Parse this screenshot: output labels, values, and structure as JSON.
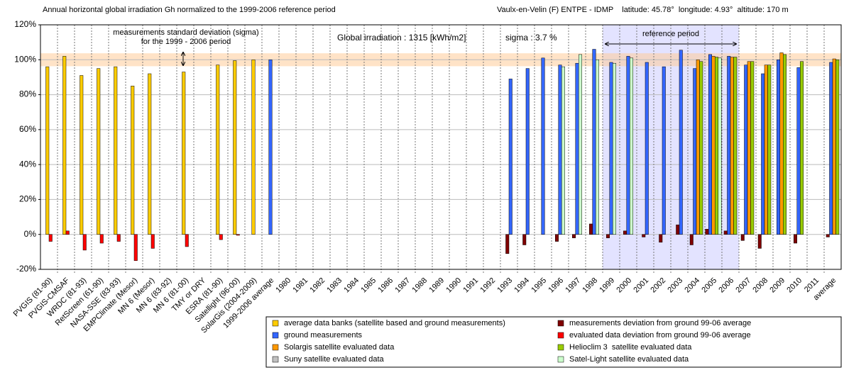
{
  "chart_data": {
    "type": "bar",
    "title": "Annual horizontal global irradiation Gh normalized to the 1999-2006 reference period",
    "subtitle": "Vaulx-en-Velin (F) ENTPE - IDMP    latitude: 45.78°  longitude: 4.93°  altitude: 170 m",
    "annotations": [
      "measurements standard deviation (sigma)",
      "for the 1999 - 2006 period",
      "Global irradiation : 1315 [kWh/m2]",
      "sigma : 3.7 %",
      "reference period"
    ],
    "sigma_band": [
      96.3,
      103.7
    ],
    "reference_band": {
      "from": "1999",
      "to": "2006"
    },
    "categories": [
      "PVGIS (81-90)",
      "PVGIS-CMSAF",
      "WRDC (81-93)",
      "RetScreen (61-90)",
      "NASA-SSE (83-93)",
      "EMPClimate (Mesor)",
      "MN 6 (Mesor)",
      "MN 6 (83-92)",
      "MN 6 (81-00)",
      "TMY or DRY",
      "ESRA (81-90)",
      "Satellight (96-00)",
      "SolarGis (2004-2009)",
      "1999-2006 average",
      "1980",
      "1981",
      "1982",
      "1983",
      "1984",
      "1985",
      "1986",
      "1987",
      "1988",
      "1989",
      "1990",
      "1991",
      "1992",
      "1993",
      "1994",
      "1995",
      "1996",
      "1997",
      "1998",
      "1999",
      "2000",
      "2001",
      "2002",
      "2003",
      "2004",
      "2005",
      "2006",
      "2007",
      "2008",
      "2009",
      "2010",
      "2011",
      "average"
    ],
    "series": [
      {
        "name": "average data banks (satellite based and ground measurements)",
        "color": "#ffcc00",
        "values": [
          96,
          102,
          91,
          95,
          96,
          85,
          92,
          null,
          93,
          null,
          97,
          99.5,
          100,
          null,
          null,
          null,
          null,
          null,
          null,
          null,
          null,
          null,
          null,
          null,
          null,
          null,
          null,
          null,
          null,
          null,
          null,
          null,
          null,
          null,
          null,
          null,
          null,
          null,
          null,
          null,
          null,
          null,
          null,
          null,
          null,
          null,
          null
        ]
      },
      {
        "name": "ground measurements",
        "color": "#3366ff",
        "values": [
          null,
          null,
          null,
          null,
          null,
          null,
          null,
          null,
          null,
          null,
          null,
          null,
          null,
          100,
          null,
          null,
          null,
          null,
          null,
          null,
          null,
          null,
          null,
          null,
          null,
          null,
          null,
          89,
          95,
          101,
          97,
          98,
          106,
          98.5,
          102,
          98.5,
          96,
          105.5,
          95,
          103,
          102,
          97,
          92,
          100,
          95.5,
          null,
          98.5
        ]
      },
      {
        "name": "Solargis satellite evaluated data",
        "color": "#ff9900",
        "values": [
          null,
          null,
          null,
          null,
          null,
          null,
          null,
          null,
          null,
          null,
          null,
          null,
          null,
          null,
          null,
          null,
          null,
          null,
          null,
          null,
          null,
          null,
          null,
          null,
          null,
          null,
          null,
          null,
          null,
          null,
          null,
          null,
          null,
          null,
          null,
          null,
          null,
          null,
          100,
          102,
          101.5,
          99,
          97,
          104,
          null,
          null,
          100.5
        ]
      },
      {
        "name": "Suny satellite evaluated data",
        "color": "#c0c0c0",
        "values": [
          null,
          null,
          null,
          null,
          null,
          null,
          null,
          null,
          null,
          null,
          null,
          null,
          null,
          null,
          null,
          null,
          null,
          null,
          null,
          null,
          null,
          null,
          null,
          null,
          null,
          null,
          null,
          null,
          null,
          null,
          null,
          null,
          null,
          null,
          null,
          null,
          null,
          null,
          null,
          null,
          null,
          null,
          null,
          null,
          null,
          null,
          null
        ]
      },
      {
        "name": "measurements deviation from ground 99-06 average",
        "color": "#800000",
        "values": [
          null,
          null,
          null,
          null,
          null,
          null,
          null,
          null,
          null,
          null,
          null,
          null,
          null,
          null,
          null,
          null,
          null,
          null,
          null,
          null,
          null,
          null,
          null,
          null,
          null,
          null,
          null,
          -11,
          -6,
          null,
          -4,
          -2,
          6,
          -2,
          2,
          -1.5,
          -4.5,
          5.5,
          -6,
          3,
          2,
          -3.5,
          -8,
          null,
          -5,
          null,
          -1.5
        ]
      },
      {
        "name": "evaluated data deviation from ground 99-06 average",
        "color": "#ff0000",
        "values": [
          -4,
          2,
          -9,
          -5,
          -4,
          -15,
          -8,
          null,
          -7,
          null,
          -3,
          -0.5,
          null,
          null,
          null,
          null,
          null,
          null,
          null,
          null,
          null,
          null,
          null,
          null,
          null,
          null,
          null,
          null,
          null,
          null,
          null,
          null,
          null,
          null,
          null,
          null,
          null,
          null,
          null,
          null,
          null,
          null,
          null,
          null,
          null,
          null,
          null
        ]
      },
      {
        "name": "Helioclim 3  satellite evaluated data",
        "color": "#99cc00",
        "values": [
          null,
          null,
          null,
          null,
          null,
          null,
          null,
          null,
          null,
          null,
          null,
          null,
          null,
          null,
          null,
          null,
          null,
          null,
          null,
          null,
          null,
          null,
          null,
          null,
          null,
          null,
          null,
          null,
          null,
          null,
          null,
          null,
          null,
          null,
          null,
          null,
          null,
          null,
          99,
          101.5,
          101.5,
          99,
          97,
          103,
          99,
          null,
          100
        ]
      },
      {
        "name": "Satel-Light satellite evaluated data",
        "color": "#ccffcc",
        "values": [
          null,
          null,
          null,
          null,
          null,
          null,
          null,
          null,
          null,
          null,
          null,
          null,
          null,
          null,
          null,
          null,
          null,
          null,
          null,
          null,
          null,
          null,
          null,
          null,
          null,
          null,
          null,
          null,
          null,
          null,
          96,
          103,
          100,
          98,
          101,
          null,
          null,
          null,
          null,
          101,
          null,
          null,
          null,
          null,
          null,
          null,
          null
        ]
      }
    ],
    "ylim": [
      -20,
      120
    ],
    "yticks": [
      {
        "value": -20,
        "label": "-20%"
      },
      {
        "value": 0,
        "label": "0%"
      },
      {
        "value": 20,
        "label": "20%"
      },
      {
        "value": 40,
        "label": "40%"
      },
      {
        "value": 60,
        "label": "60%"
      },
      {
        "value": 80,
        "label": "80%"
      },
      {
        "value": 100,
        "label": "100%"
      },
      {
        "value": 120,
        "label": "120%"
      }
    ],
    "grid": true
  }
}
